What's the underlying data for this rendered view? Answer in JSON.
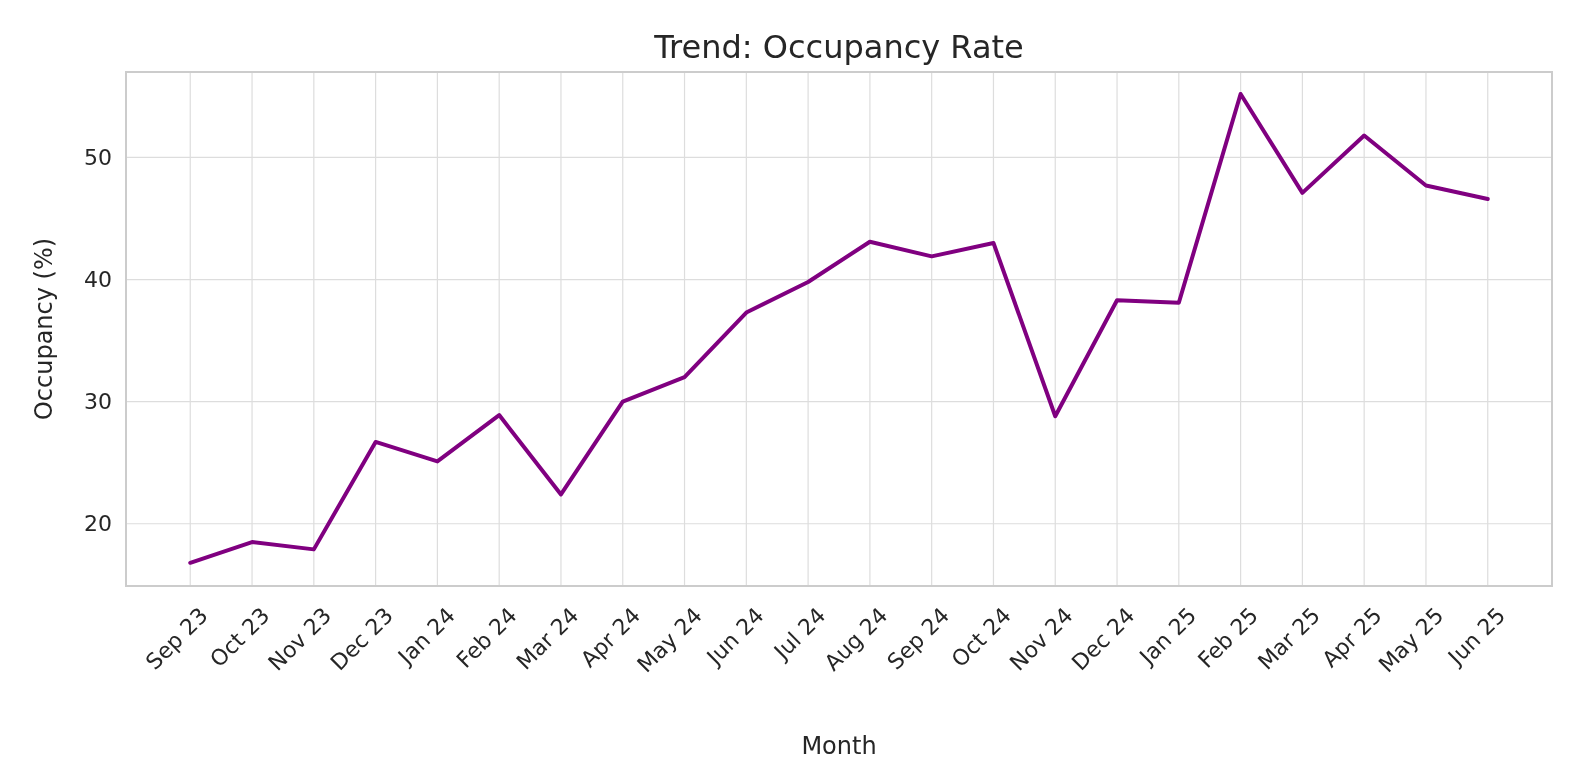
{
  "chart_data": {
    "type": "line",
    "title": "Trend: Occupancy Rate",
    "xlabel": "Month",
    "ylabel": "Occupancy (%)",
    "categories": [
      "Sep 23",
      "Oct 23",
      "Nov 23",
      "Dec 23",
      "Jan 24",
      "Feb 24",
      "Mar 24",
      "Apr 24",
      "May 24",
      "Jun 24",
      "Jul 24",
      "Aug 24",
      "Sep 24",
      "Oct 24",
      "Nov 24",
      "Dec 24",
      "Jan 25",
      "Feb 25",
      "Mar 25",
      "Apr 25",
      "May 25",
      "Jun 25"
    ],
    "series": [
      {
        "color": "#800080",
        "values": [
          16.8,
          18.5,
          17.9,
          26.7,
          25.1,
          28.9,
          22.4,
          30.0,
          32.0,
          37.3,
          39.8,
          43.1,
          41.9,
          43.0,
          28.8,
          38.3,
          38.1,
          55.2,
          47.1,
          51.8,
          47.7,
          46.6
        ]
      }
    ],
    "ylim": [
      14.9,
      57.0
    ],
    "yticks": [
      20,
      30,
      40,
      50
    ],
    "grid": true,
    "marker": "none",
    "line_style": "solid"
  }
}
